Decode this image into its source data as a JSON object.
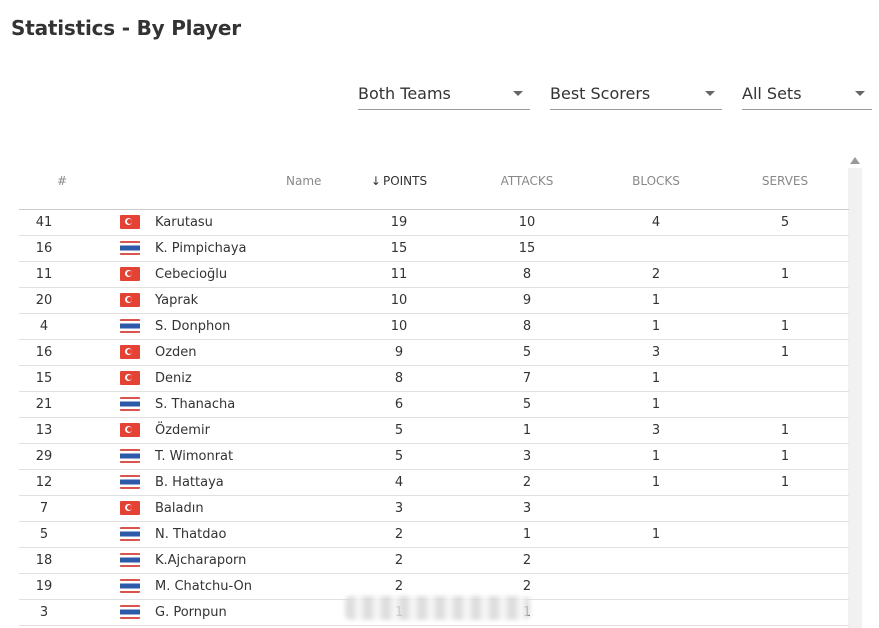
{
  "page": {
    "title": "Statistics - By Player"
  },
  "filters": {
    "team": {
      "value": "Both Teams"
    },
    "stat": {
      "value": "Best Scorers"
    },
    "sets": {
      "value": "All Sets"
    }
  },
  "table": {
    "headers": {
      "num": "#",
      "name": "Name",
      "points": "POINTS",
      "attacks": "ATTACKS",
      "blocks": "BLOCKS",
      "serves": "SERVES"
    },
    "sort_icon": "arrow-down-icon",
    "rows": [
      {
        "num": "41",
        "flag": "turkey",
        "name": "Karutasu",
        "points": "19",
        "attacks": "10",
        "blocks": "4",
        "serves": "5"
      },
      {
        "num": "16",
        "flag": "thailand",
        "name": "K. Pimpichaya",
        "points": "15",
        "attacks": "15",
        "blocks": "",
        "serves": ""
      },
      {
        "num": "11",
        "flag": "turkey",
        "name": "Cebecioğlu",
        "points": "11",
        "attacks": "8",
        "blocks": "2",
        "serves": "1"
      },
      {
        "num": "20",
        "flag": "turkey",
        "name": "Yaprak",
        "points": "10",
        "attacks": "9",
        "blocks": "1",
        "serves": ""
      },
      {
        "num": "4",
        "flag": "thailand",
        "name": "S. Donphon",
        "points": "10",
        "attacks": "8",
        "blocks": "1",
        "serves": "1"
      },
      {
        "num": "16",
        "flag": "turkey",
        "name": "Ozden",
        "points": "9",
        "attacks": "5",
        "blocks": "3",
        "serves": "1"
      },
      {
        "num": "15",
        "flag": "turkey",
        "name": "Deniz",
        "points": "8",
        "attacks": "7",
        "blocks": "1",
        "serves": ""
      },
      {
        "num": "21",
        "flag": "thailand",
        "name": "S. Thanacha",
        "points": "6",
        "attacks": "5",
        "blocks": "1",
        "serves": ""
      },
      {
        "num": "13",
        "flag": "turkey",
        "name": "Özdemir",
        "points": "5",
        "attacks": "1",
        "blocks": "3",
        "serves": "1"
      },
      {
        "num": "29",
        "flag": "thailand",
        "name": "T. Wimonrat",
        "points": "5",
        "attacks": "3",
        "blocks": "1",
        "serves": "1"
      },
      {
        "num": "12",
        "flag": "thailand",
        "name": "B. Hattaya",
        "points": "4",
        "attacks": "2",
        "blocks": "1",
        "serves": "1"
      },
      {
        "num": "7",
        "flag": "turkey",
        "name": "Baladın",
        "points": "3",
        "attacks": "3",
        "blocks": "",
        "serves": ""
      },
      {
        "num": "5",
        "flag": "thailand",
        "name": "N. Thatdao",
        "points": "2",
        "attacks": "1",
        "blocks": "1",
        "serves": ""
      },
      {
        "num": "18",
        "flag": "thailand",
        "name": "K.Ajcharaporn",
        "points": "2",
        "attacks": "2",
        "blocks": "",
        "serves": ""
      },
      {
        "num": "19",
        "flag": "thailand",
        "name": "M. Chatchu-On",
        "points": "2",
        "attacks": "2",
        "blocks": "",
        "serves": ""
      },
      {
        "num": "3",
        "flag": "thailand",
        "name": "G. Pornpun",
        "points": "1",
        "attacks": "1",
        "blocks": "",
        "serves": ""
      }
    ]
  }
}
